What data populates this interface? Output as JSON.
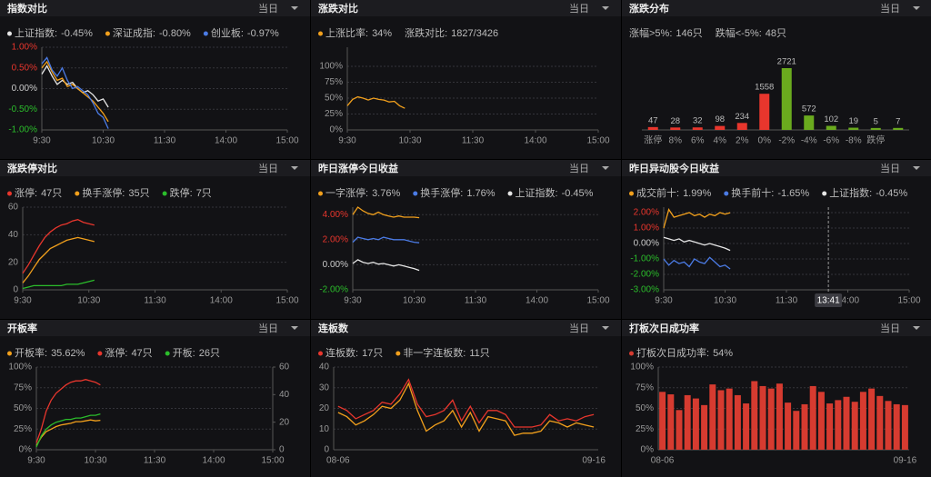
{
  "chart_data": [
    {
      "type": "line",
      "title": "指数对比",
      "range": "当日",
      "x": [
        0,
        5,
        10,
        15,
        20,
        25,
        30,
        35,
        40,
        45,
        50,
        55,
        60,
        65
      ],
      "xlim": [
        0,
        240
      ],
      "xticks": [
        {
          "value": 0,
          "label": "9:30"
        },
        {
          "value": 60,
          "label": "10:30"
        },
        {
          "value": 120,
          "label": "11:30"
        },
        {
          "value": 180,
          "label": "14:00"
        },
        {
          "value": 240,
          "label": "15:00"
        }
      ],
      "ylim": [
        -1,
        1
      ],
      "yticks": [
        {
          "value": 1,
          "label": "1.00%"
        },
        {
          "value": 0.5,
          "label": "0.50%"
        },
        {
          "value": 0,
          "label": "0.00%"
        },
        {
          "value": -0.5,
          "label": "-0.50%"
        },
        {
          "value": -1,
          "label": "-1.00%"
        }
      ],
      "signed_tick_colors": true,
      "grid": true,
      "series": [
        {
          "name": "上证指数:",
          "color": "#e6e6e6",
          "latest_label": "-0.45%",
          "label_color": "#2bbd2b",
          "values": [
            0.35,
            0.55,
            0.3,
            0.1,
            0.2,
            0.1,
            0.15,
            0.0,
            -0.1,
            -0.05,
            -0.15,
            -0.3,
            -0.25,
            -0.45
          ]
        },
        {
          "name": "深证成指:",
          "color": "#f2a01c",
          "latest_label": "-0.80%",
          "label_color": "#2bbd2b",
          "values": [
            0.5,
            0.65,
            0.4,
            0.2,
            0.25,
            0.05,
            0.1,
            0.0,
            -0.1,
            -0.2,
            -0.3,
            -0.45,
            -0.6,
            -0.8
          ]
        },
        {
          "name": "创业板:",
          "color": "#4b7be5",
          "latest_label": "-0.97%",
          "label_color": "#2bbd2b",
          "values": [
            0.6,
            0.75,
            0.45,
            0.3,
            0.5,
            0.2,
            0.0,
            0.05,
            -0.05,
            -0.15,
            -0.35,
            -0.6,
            -0.7,
            -0.97
          ]
        }
      ]
    },
    {
      "type": "line",
      "title": "涨跌对比",
      "range": "当日",
      "x": [
        0,
        5,
        10,
        15,
        20,
        25,
        30,
        35,
        40,
        45,
        50,
        55
      ],
      "xlim": [
        0,
        240
      ],
      "xticks": [
        {
          "value": 0,
          "label": "9:30"
        },
        {
          "value": 60,
          "label": "10:30"
        },
        {
          "value": 120,
          "label": "11:30"
        },
        {
          "value": 180,
          "label": "14:00"
        },
        {
          "value": 240,
          "label": "15:00"
        }
      ],
      "ylim": [
        0,
        130
      ],
      "yticks": [
        {
          "value": 100,
          "label": "100%"
        },
        {
          "value": 75,
          "label": "75%"
        },
        {
          "value": 50,
          "label": "50%"
        },
        {
          "value": 25,
          "label": "25%"
        },
        {
          "value": 0,
          "label": "0%"
        }
      ],
      "grid": true,
      "series": [
        {
          "name": "上涨比率:",
          "color": "#f2a01c",
          "latest_label": "34%",
          "label_color": "#ffffff",
          "values": [
            38,
            48,
            52,
            50,
            47,
            50,
            48,
            47,
            44,
            45,
            38,
            34
          ]
        }
      ],
      "extra_legend": [
        {
          "label": "涨跌对比:",
          "parts": [
            {
              "text": "1827",
              "color": "#e8362d"
            },
            {
              "text": "/3426",
              "color": "#2bbd2b"
            }
          ]
        }
      ]
    },
    {
      "type": "bar",
      "title": "涨跌分布",
      "range": "当日",
      "categories": [
        "涨停",
        "8%",
        "6%",
        "4%",
        "2%",
        "0%",
        "-2%",
        "-4%",
        "-6%",
        "-8%",
        "跌停",
        null
      ],
      "values": [
        47,
        28,
        32,
        98,
        234,
        1558,
        2721,
        572,
        102,
        19,
        5,
        7
      ],
      "colors": [
        "#e8362d",
        "#e8362d",
        "#e8362d",
        "#e8362d",
        "#e8362d",
        "#e8362d",
        "#6aaa1e",
        "#6aaa1e",
        "#6aaa1e",
        "#6aaa1e",
        "#6aaa1e",
        "#6aaa1e"
      ],
      "extra_legend": [
        {
          "label": "涨幅>5%:",
          "parts": [
            {
              "text": "146只",
              "color": "#e8362d"
            }
          ]
        },
        {
          "label": "跌幅<-5%:",
          "parts": [
            {
              "text": "48只",
              "color": "#2bbd2b"
            }
          ]
        }
      ]
    },
    {
      "type": "line",
      "title": "涨跌停对比",
      "range": "当日",
      "x": [
        0,
        5,
        10,
        15,
        20,
        25,
        30,
        35,
        40,
        45,
        50,
        55,
        60,
        65
      ],
      "xlim": [
        0,
        240
      ],
      "xticks": [
        {
          "value": 0,
          "label": "9:30"
        },
        {
          "value": 60,
          "label": "10:30"
        },
        {
          "value": 120,
          "label": "11:30"
        },
        {
          "value": 180,
          "label": "14:00"
        },
        {
          "value": 240,
          "label": "15:00"
        }
      ],
      "ylim": [
        0,
        60
      ],
      "yticks": [
        60,
        40,
        20,
        0
      ],
      "grid": true,
      "series": [
        {
          "name": "涨停:",
          "color": "#e8362d",
          "latest_label": "47只",
          "label_color": "#ffffff",
          "values": [
            12,
            18,
            25,
            32,
            38,
            42,
            45,
            47,
            48,
            50,
            51,
            49,
            48,
            47
          ]
        },
        {
          "name": "换手涨停:",
          "color": "#f2a01c",
          "latest_label": "35只",
          "label_color": "#ffffff",
          "values": [
            5,
            10,
            16,
            22,
            26,
            30,
            32,
            34,
            36,
            37,
            38,
            37,
            36,
            35
          ]
        },
        {
          "name": "跌停:",
          "color": "#2bbd2b",
          "latest_label": "7只",
          "label_color": "#ffffff",
          "values": [
            1,
            2,
            3,
            3,
            3,
            3,
            3,
            3,
            4,
            4,
            4,
            5,
            6,
            7
          ]
        }
      ]
    },
    {
      "type": "line",
      "title": "昨日涨停今日收益",
      "range": "当日",
      "x": [
        0,
        5,
        10,
        15,
        20,
        25,
        30,
        35,
        40,
        45,
        50,
        55,
        60,
        65
      ],
      "xlim": [
        0,
        240
      ],
      "xticks": [
        {
          "value": 0,
          "label": "9:30"
        },
        {
          "value": 60,
          "label": "10:30"
        },
        {
          "value": 120,
          "label": "11:30"
        },
        {
          "value": 180,
          "label": "14:00"
        },
        {
          "value": 240,
          "label": "15:00"
        }
      ],
      "ylim": [
        -2,
        4.6
      ],
      "yticks": [
        {
          "value": 4,
          "label": "4.00%"
        },
        {
          "value": 2,
          "label": "2.00%"
        },
        {
          "value": 0,
          "label": "0.00%"
        },
        {
          "value": -2,
          "label": "-2.00%"
        }
      ],
      "signed_tick_colors": true,
      "grid": true,
      "series": [
        {
          "name": "一字涨停:",
          "color": "#f2a01c",
          "latest_label": "3.76%",
          "label_color": "#e8362d",
          "values": [
            4.0,
            4.6,
            4.3,
            4.1,
            4.0,
            4.2,
            4.0,
            3.9,
            3.8,
            3.9,
            3.8,
            3.8,
            3.8,
            3.76
          ]
        },
        {
          "name": "换手涨停:",
          "color": "#4b7be5",
          "latest_label": "1.76%",
          "label_color": "#e8362d",
          "values": [
            1.8,
            2.2,
            2.1,
            2.0,
            2.1,
            2.0,
            2.2,
            2.1,
            2.0,
            2.0,
            2.0,
            1.9,
            1.8,
            1.76
          ]
        },
        {
          "name": "上证指数:",
          "color": "#e6e6e6",
          "latest_label": "-0.45%",
          "label_color": "#2bbd2b",
          "values": [
            0.1,
            0.4,
            0.2,
            0.1,
            0.2,
            0.05,
            0.1,
            0.0,
            -0.1,
            0.0,
            -0.1,
            -0.2,
            -0.3,
            -0.45
          ]
        }
      ]
    },
    {
      "type": "line",
      "title": "昨日异动股今日收益",
      "range": "当日",
      "x": [
        0,
        5,
        10,
        15,
        20,
        25,
        30,
        35,
        40,
        45,
        50,
        55,
        60,
        65
      ],
      "xlim": [
        0,
        240
      ],
      "xticks": [
        {
          "value": 0,
          "label": "9:30"
        },
        {
          "value": 60,
          "label": "10:30"
        },
        {
          "value": 120,
          "label": "11:30"
        },
        {
          "value": 180,
          "label": "14:00"
        },
        {
          "value": 240,
          "label": "15:00"
        }
      ],
      "ylim": [
        -3,
        2.35
      ],
      "yticks": [
        {
          "value": 2,
          "label": "2.00%"
        },
        {
          "value": 1,
          "label": "1.00%"
        },
        {
          "value": 0,
          "label": "0.00%"
        },
        {
          "value": -1,
          "label": "-1.00%"
        },
        {
          "value": -2,
          "label": "-2.00%"
        },
        {
          "value": -3,
          "label": "-3.00%"
        }
      ],
      "signed_tick_colors": true,
      "grid": true,
      "crosshair": {
        "value": 161,
        "label": "13:41"
      },
      "series": [
        {
          "name": "成交前十:",
          "color": "#f2a01c",
          "latest_label": "1.99%",
          "label_color": "#e8362d",
          "values": [
            1.0,
            2.2,
            1.7,
            1.8,
            1.9,
            2.0,
            1.8,
            1.9,
            1.7,
            1.9,
            1.8,
            2.0,
            1.9,
            1.99
          ]
        },
        {
          "name": "换手前十:",
          "color": "#4b7be5",
          "latest_label": "-1.65%",
          "label_color": "#2bbd2b",
          "values": [
            -1.0,
            -1.4,
            -1.1,
            -1.3,
            -1.2,
            -1.5,
            -1.0,
            -1.2,
            -1.3,
            -0.9,
            -1.2,
            -1.5,
            -1.4,
            -1.65
          ]
        },
        {
          "name": "上证指数:",
          "color": "#e6e6e6",
          "latest_label": "-0.45%",
          "label_color": "#2bbd2b",
          "values": [
            0.4,
            0.3,
            0.2,
            0.3,
            0.1,
            0.2,
            0.1,
            0.0,
            -0.1,
            0.0,
            -0.1,
            -0.2,
            -0.3,
            -0.45
          ]
        }
      ]
    },
    {
      "type": "line",
      "title": "开板率",
      "range": "当日",
      "x": [
        0,
        5,
        10,
        15,
        20,
        25,
        30,
        35,
        40,
        45,
        50,
        55,
        60,
        65
      ],
      "xlim": [
        0,
        240
      ],
      "xticks": [
        {
          "value": 0,
          "label": "9:30"
        },
        {
          "value": 60,
          "label": "10:30"
        },
        {
          "value": 120,
          "label": "11:30"
        },
        {
          "value": 180,
          "label": "14:00"
        },
        {
          "value": 240,
          "label": "15:00"
        }
      ],
      "ylim": [
        0,
        100
      ],
      "yticks": [
        {
          "value": 100,
          "label": "100%"
        },
        {
          "value": 75,
          "label": "75%"
        },
        {
          "value": 50,
          "label": "50%"
        },
        {
          "value": 25,
          "label": "25%"
        },
        {
          "value": 0,
          "label": "0%"
        }
      ],
      "y2lim": [
        0,
        60
      ],
      "y2ticks": [
        60,
        40,
        20,
        0
      ],
      "grid": true,
      "series": [
        {
          "name": "开板率:",
          "color": "#f2a01c",
          "latest_label": "35.62%",
          "label_color": "#ffffff",
          "values": [
            5,
            15,
            22,
            25,
            28,
            30,
            31,
            32,
            34,
            34,
            35,
            36,
            35,
            35.62
          ]
        },
        {
          "name": "涨停:",
          "color": "#e8362d",
          "axis": "y2",
          "latest_label": "47只",
          "label_color": "#ffffff",
          "values": [
            5,
            15,
            28,
            36,
            41,
            44,
            47,
            49,
            50,
            50,
            51,
            50,
            49,
            47
          ]
        },
        {
          "name": "开板:",
          "color": "#2bbd2b",
          "axis": "y2",
          "latest_label": "26只",
          "label_color": "#ffffff",
          "values": [
            2,
            10,
            15,
            18,
            20,
            21,
            22,
            22,
            23,
            23,
            24,
            25,
            25,
            26
          ]
        }
      ]
    },
    {
      "type": "line",
      "title": "连板数",
      "range": "当日",
      "categories": [
        "08-06",
        null,
        null,
        null,
        null,
        null,
        null,
        null,
        null,
        null,
        null,
        null,
        null,
        null,
        null,
        null,
        null,
        null,
        null,
        null,
        null,
        null,
        null,
        null,
        null,
        null,
        null,
        null,
        null,
        "09-16"
      ],
      "ylim": [
        0,
        40
      ],
      "yticks": [
        40,
        30,
        20,
        10,
        0
      ],
      "grid": true,
      "series": [
        {
          "name": "连板数:",
          "color": "#e8362d",
          "latest_label": "17只",
          "label_color": "#ffffff",
          "values": [
            21,
            19,
            15,
            17,
            19,
            23,
            22,
            27,
            34,
            22,
            16,
            17,
            19,
            24,
            14,
            21,
            13,
            19,
            19,
            17,
            11,
            11,
            11,
            12,
            17,
            14,
            15,
            14,
            16,
            17
          ]
        },
        {
          "name": "非一字连板数:",
          "color": "#f2a01c",
          "latest_label": "11只",
          "label_color": "#ffffff",
          "values": [
            18,
            16,
            12,
            14,
            17,
            21,
            20,
            24,
            32,
            19,
            9,
            12,
            14,
            19,
            11,
            18,
            9,
            16,
            15,
            14,
            7,
            8,
            8,
            9,
            14,
            13,
            11,
            13,
            12,
            11
          ]
        }
      ]
    },
    {
      "type": "bar",
      "title": "打板次日成功率",
      "range": "当日",
      "categories": [
        "08-06",
        null,
        null,
        null,
        null,
        null,
        null,
        null,
        null,
        null,
        null,
        null,
        null,
        null,
        null,
        null,
        null,
        null,
        null,
        null,
        null,
        null,
        null,
        null,
        null,
        null,
        null,
        null,
        null,
        "09-16"
      ],
      "ylim": [
        0,
        100
      ],
      "yticks": [
        {
          "value": 100,
          "label": "100%"
        },
        {
          "value": 75,
          "label": "75%"
        },
        {
          "value": 50,
          "label": "50%"
        },
        {
          "value": 25,
          "label": "25%"
        },
        {
          "value": 0,
          "label": "0%"
        }
      ],
      "grid": true,
      "series": [
        {
          "name": "打板次日成功率:",
          "color": "#d63b30",
          "latest_label": "54%",
          "label_color": "#ffffff",
          "values": [
            70,
            67,
            48,
            66,
            62,
            54,
            79,
            72,
            74,
            66,
            56,
            83,
            77,
            74,
            80,
            57,
            47,
            55,
            77,
            70,
            56,
            60,
            64,
            58,
            70,
            74,
            65,
            59,
            55,
            54
          ]
        }
      ]
    }
  ]
}
